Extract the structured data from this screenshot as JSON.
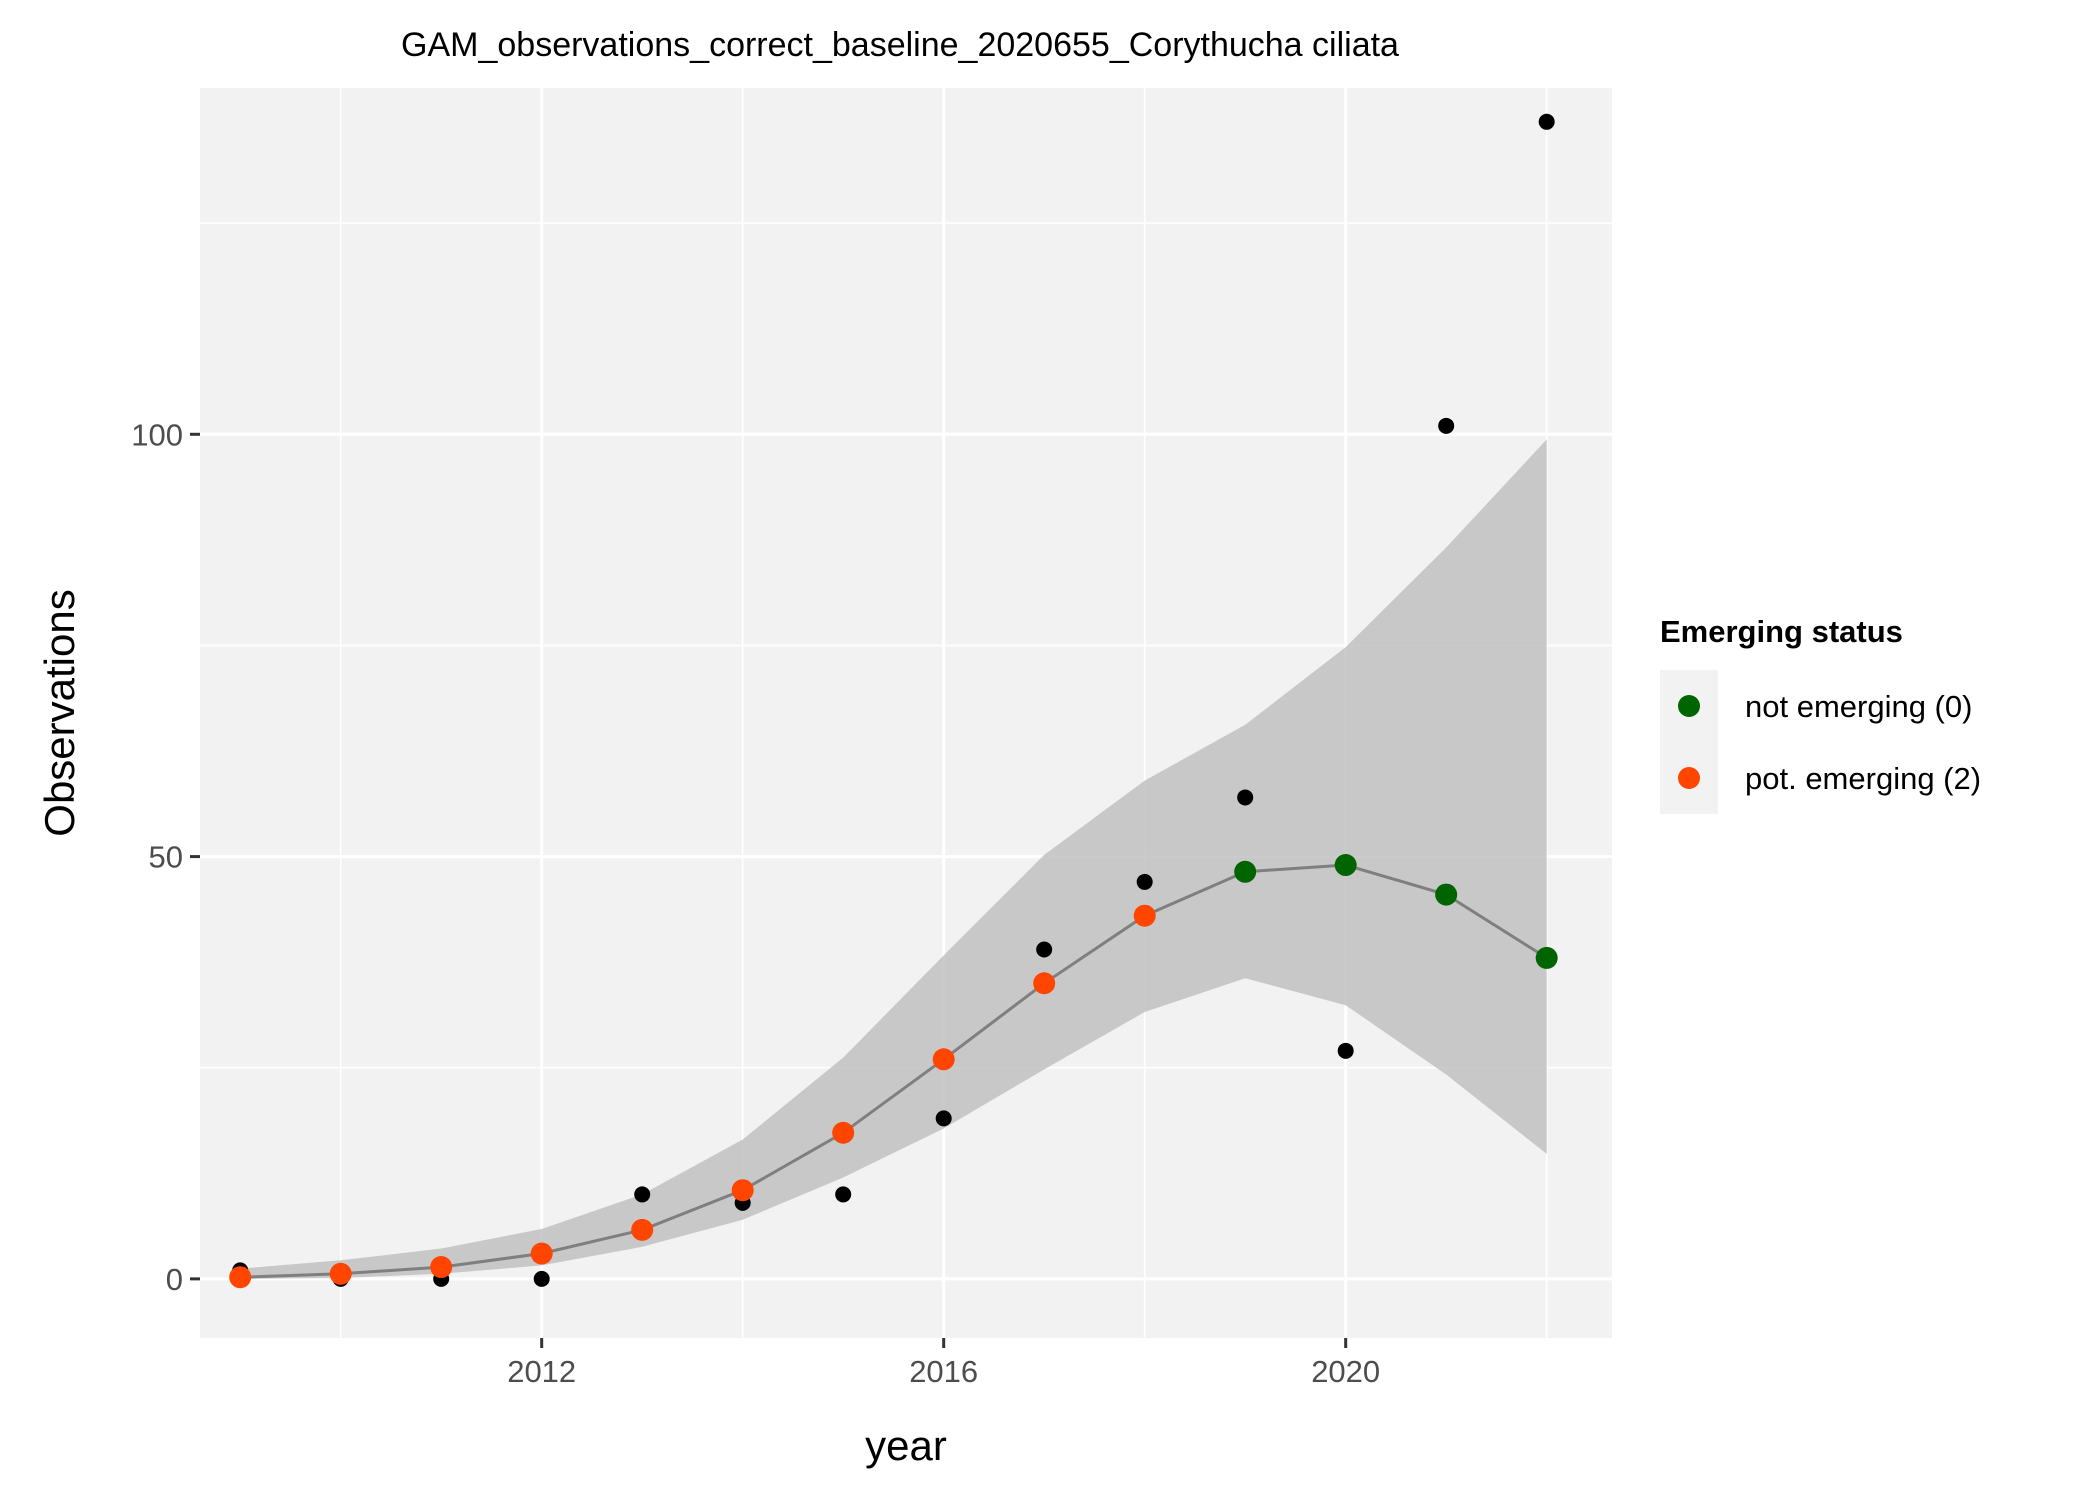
{
  "chart_data": {
    "type": "scatter",
    "title": "GAM_observations_correct_baseline_2020655_Corythucha ciliata",
    "xlabel": "year",
    "ylabel": "Observations",
    "xlim": [
      2008.6,
      2022.65
    ],
    "ylim": [
      -7,
      141
    ],
    "x_ticks": [
      2012,
      2016,
      2020
    ],
    "x_tick_labels": [
      "2012",
      "2016",
      "2020"
    ],
    "y_ticks": [
      0,
      50,
      100
    ],
    "y_tick_labels": [
      "0",
      "50",
      "100"
    ],
    "y_minor_ticks": [
      25,
      75,
      125
    ],
    "x_minor_ticks": [
      2010,
      2014,
      2018,
      2022
    ],
    "grid": true,
    "panel_background": "#f2f2f2",
    "observed": {
      "color": "#000000",
      "x": [
        2009,
        2010,
        2011,
        2012,
        2013,
        2014,
        2015,
        2016,
        2017,
        2018,
        2019,
        2020,
        2021,
        2022
      ],
      "y": [
        1,
        0,
        0,
        0,
        10,
        9,
        10,
        19,
        39,
        47,
        57,
        27,
        101,
        137
      ]
    },
    "fit": {
      "line_color": "#7f7f7f",
      "ribbon_color": "#bdbdbd",
      "x": [
        2009,
        2010,
        2011,
        2012,
        2013,
        2014,
        2015,
        2016,
        2017,
        2018,
        2019,
        2020,
        2021,
        2022
      ],
      "y": [
        0.2,
        0.6,
        1.4,
        3.0,
        5.8,
        10.5,
        17.3,
        26.0,
        35.0,
        43.0,
        48.2,
        49.0,
        45.5,
        38.0
      ],
      "lower": [
        0.0,
        0.1,
        0.6,
        1.6,
        3.8,
        7.0,
        12.0,
        17.8,
        24.8,
        31.6,
        35.6,
        32.4,
        24.2,
        14.8
      ],
      "upper": [
        1.2,
        2.2,
        3.6,
        5.9,
        10.0,
        16.5,
        26.2,
        38.3,
        50.2,
        59.0,
        65.6,
        74.8,
        86.6,
        99.4
      ],
      "status": [
        "pot",
        "pot",
        "pot",
        "pot",
        "pot",
        "pot",
        "pot",
        "pot",
        "pot",
        "pot",
        "not",
        "not",
        "not",
        "not"
      ]
    },
    "legend": {
      "title": "Emerging status",
      "placement": "right",
      "items": [
        {
          "key": "not",
          "label": "not emerging (0)",
          "color": "#006400"
        },
        {
          "key": "pot",
          "label": "pot. emerging (2)",
          "color": "#ff4500"
        }
      ]
    }
  }
}
